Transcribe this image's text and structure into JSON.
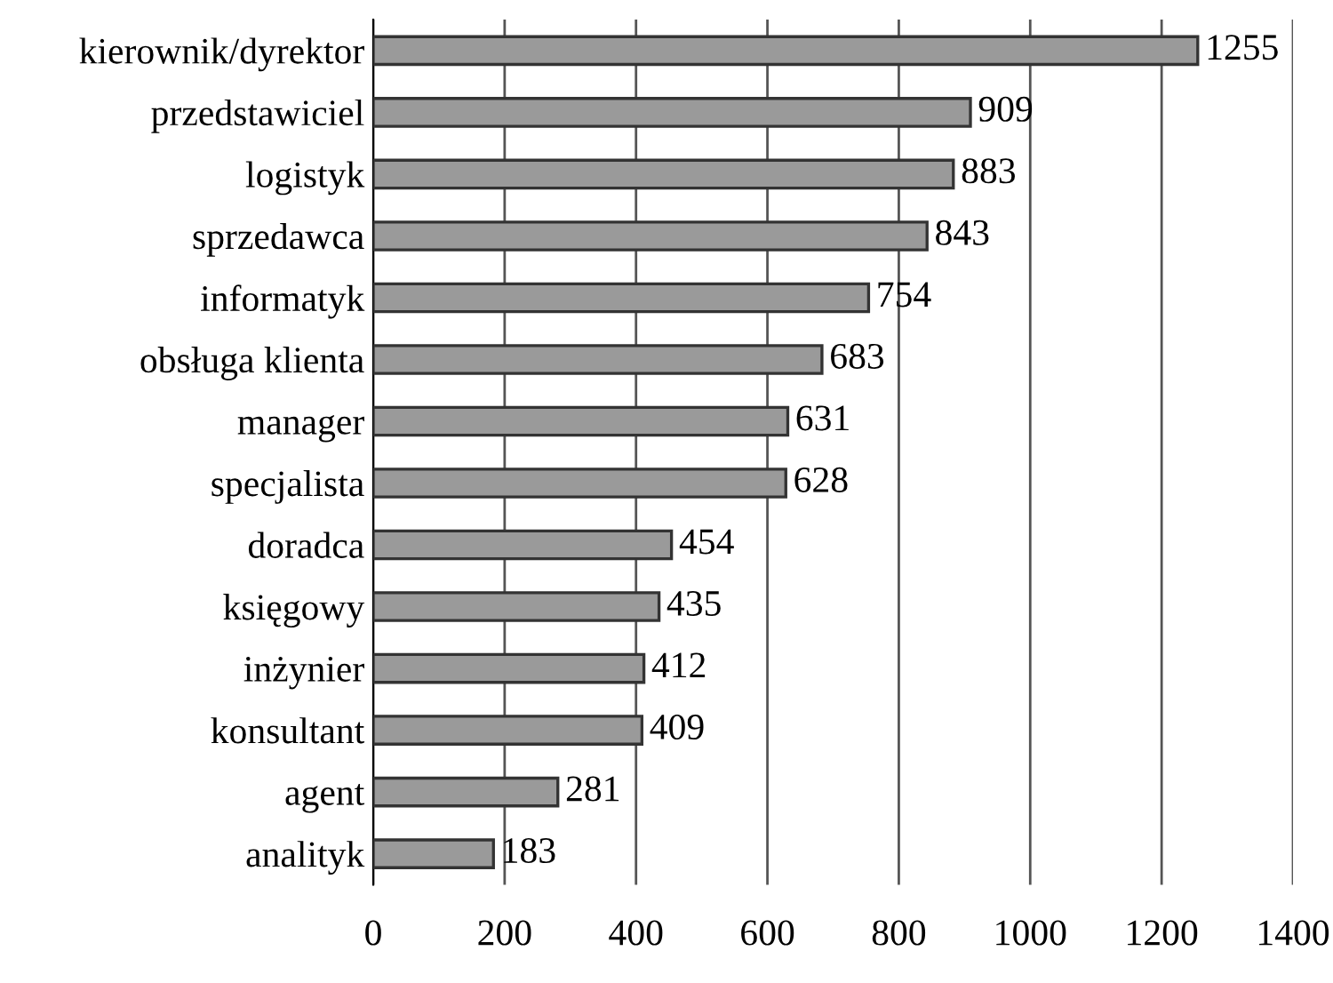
{
  "chart_data": {
    "type": "bar",
    "orientation": "horizontal",
    "categories": [
      "kierownik/dyrektor",
      "przedstawiciel",
      "logistyk",
      "sprzedawca",
      "informatyk",
      "obsługa klienta",
      "manager",
      "specjalista",
      "doradca",
      "księgowy",
      "inżynier",
      "konsultant",
      "agent",
      "analityk"
    ],
    "values": [
      1255,
      909,
      883,
      843,
      754,
      683,
      631,
      628,
      454,
      435,
      412,
      409,
      281,
      183
    ],
    "color": "#9a9a9a",
    "data_labels": true,
    "xlim": [
      0,
      1400
    ],
    "xticks": [
      0,
      200,
      400,
      600,
      800,
      1000,
      1200,
      1400
    ],
    "grid": "x"
  }
}
